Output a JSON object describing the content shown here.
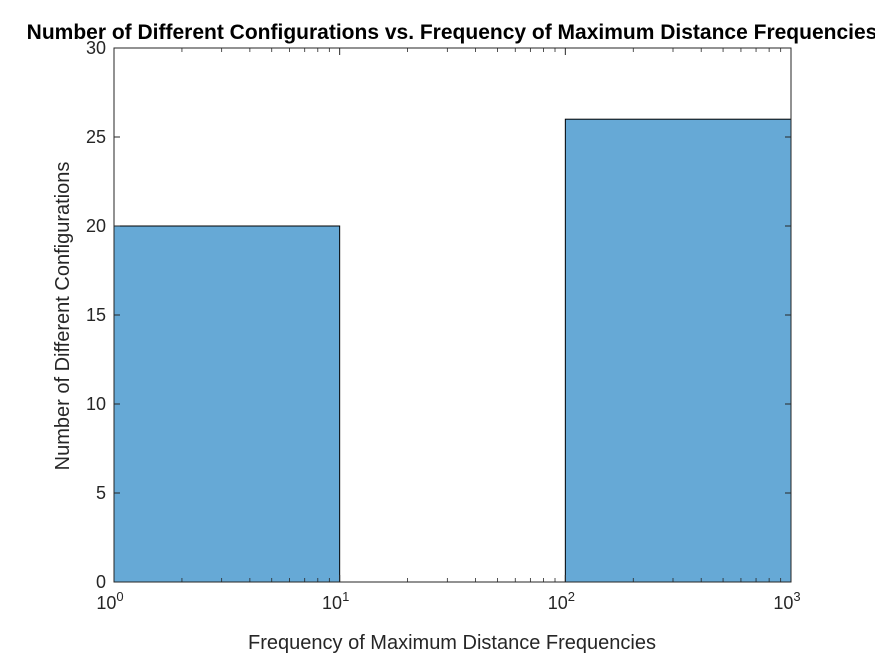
{
  "chart_data": {
    "type": "bar",
    "title": "Number of Different Configurations vs. Frequency of Maximum Distance Frequencies",
    "xlabel": "Frequency of Maximum Distance Frequencies",
    "ylabel": "Number of Different Configurations",
    "x_scale": "log",
    "xlim": [
      1,
      1000
    ],
    "ylim": [
      0,
      30
    ],
    "x_ticks": [
      {
        "base": "10",
        "exp": "0",
        "value": 1
      },
      {
        "base": "10",
        "exp": "1",
        "value": 10
      },
      {
        "base": "10",
        "exp": "2",
        "value": 100
      },
      {
        "base": "10",
        "exp": "3",
        "value": 1000
      }
    ],
    "y_ticks": [
      "0",
      "5",
      "10",
      "15",
      "20",
      "25",
      "30"
    ],
    "bins": [
      {
        "x_start": 1,
        "x_end": 10,
        "value": 20
      },
      {
        "x_start": 10,
        "x_end": 100,
        "value": 0
      },
      {
        "x_start": 100,
        "x_end": 1000,
        "value": 26
      }
    ],
    "grid": false,
    "box": true,
    "colors": {
      "bar_fill": "#66A9D6",
      "bar_edge": "#000000",
      "axes": "#262626"
    }
  }
}
